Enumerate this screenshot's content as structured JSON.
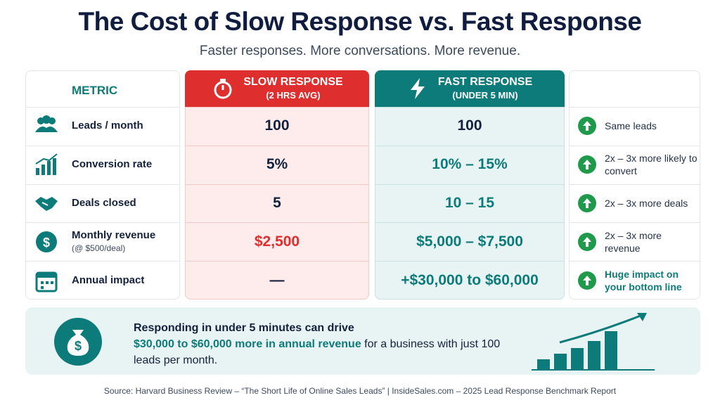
{
  "title": "The Cost of Slow Response vs. Fast Response",
  "subtitle": "Faster responses. More conversations. More revenue.",
  "table": {
    "header": {
      "metric": "METRIC",
      "slow": {
        "title": "SLOW RESPONSE",
        "sub": "(2 HRS AVG)"
      },
      "fast": {
        "title": "FAST RESPONSE",
        "sub": "(UNDER 5 MIN)"
      }
    },
    "rows": [
      {
        "metric": "Leads / month",
        "slow": "100",
        "fast": "100",
        "impact": "Same leads"
      },
      {
        "metric": "Conversion rate",
        "slow": "5%",
        "fast": "10% – 15%",
        "impact": "2x – 3x more likely to convert"
      },
      {
        "metric": "Deals closed",
        "slow": "5",
        "fast": "10 – 15",
        "impact": "2x – 3x more deals"
      },
      {
        "metric": "Monthly revenue",
        "note": "(@ $500/deal)",
        "slow": "$2,500",
        "fast": "$5,000 – $7,500",
        "impact": "2x – 3x more revenue"
      },
      {
        "metric": "Annual impact",
        "slow": "—",
        "fast": "+$30,000 to $60,000",
        "impact": "Huge impact on your bottom line"
      }
    ]
  },
  "callout": {
    "line1": "Responding in under 5 minutes can drive",
    "highlight": "$30,000 to $60,000 more in annual revenue",
    "rest": " for a business with just 100 leads per month."
  },
  "source": "Source: Harvard Business Review – “The Short Life of Online Sales Leads”  |  InsideSales.com – 2025 Lead Response Benchmark Report"
}
